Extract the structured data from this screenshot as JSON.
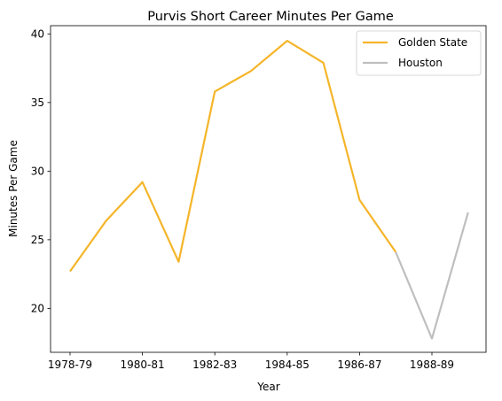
{
  "chart_data": {
    "type": "line",
    "title": "Purvis Short Career Minutes Per Game",
    "xlabel": "Year",
    "ylabel": "Minutes Per Game",
    "x_categories": [
      "1978-79",
      "1979-80",
      "1980-81",
      "1981-82",
      "1982-83",
      "1983-84",
      "1984-85",
      "1985-86",
      "1986-87",
      "1987-88",
      "1988-89",
      "1989-90"
    ],
    "x_tick_labels": [
      "1978-79",
      "1980-81",
      "1982-83",
      "1984-85",
      "1986-87",
      "1988-89"
    ],
    "y_ticks": [
      20,
      25,
      30,
      35,
      40
    ],
    "ylim": [
      16.8,
      40.6
    ],
    "grid": false,
    "legend_placement": "top-right",
    "series": [
      {
        "name": "Golden State",
        "color": "#F5B529",
        "x": [
          "1978-79",
          "1979-80",
          "1980-81",
          "1981-82",
          "1982-83",
          "1983-84",
          "1984-85",
          "1985-86",
          "1986-87",
          "1987-88"
        ],
        "values": [
          22.7,
          26.4,
          29.2,
          23.4,
          35.8,
          37.3,
          39.5,
          37.9,
          27.9,
          24.1
        ]
      },
      {
        "name": "Houston",
        "color": "#BFBFBF",
        "x": [
          "1987-88",
          "1988-89",
          "1989-90"
        ],
        "values": [
          24.1,
          17.8,
          27.0
        ]
      }
    ]
  }
}
